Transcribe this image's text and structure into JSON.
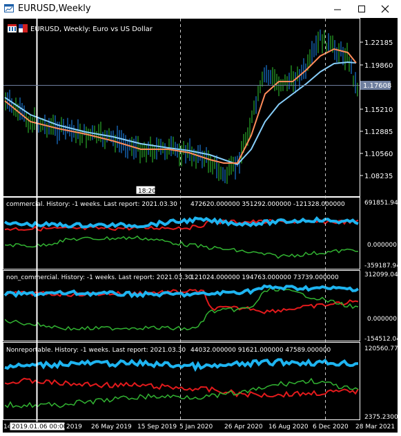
{
  "window": {
    "title": "EURUSD,Weekly"
  },
  "main": {
    "header": "EURUSD, Weekly:  Euro vs US Dollar",
    "price_ticks": [
      "1.22185",
      "1.19860",
      "1.15210",
      "1.12885",
      "1.10560",
      "1.08235"
    ],
    "current_price": "1.17608",
    "crosshair_time": "18:20"
  },
  "panels": [
    {
      "label": "commercial. History: -1 weeks. Last report: 2021.03.30",
      "values": "472620.000000  351292.000000  -121328.000000",
      "ticks": [
        "691851.940",
        "0.000000",
        "-359187.940"
      ]
    },
    {
      "label": "non_commercial. History: -1 weeks. Last report: 2021.03.30",
      "values": "121024.000000  194763.000000  73739.000000",
      "ticks": [
        "312099.045",
        "0.000000",
        "-154512.045"
      ]
    },
    {
      "label": "Nonreportable. History: -1 weeks. Last report: 2021.03.30",
      "values": "44032.000000  91621.000000  47589.000000",
      "ticks": [
        "120560.770",
        "2375.230000"
      ]
    }
  ],
  "time_axis": {
    "cursor_date": "2019.01.06 00:00",
    "left_fragment": "14",
    "labels": [
      "2019",
      "26 May 2019",
      "15 Sep 2019",
      "5 Jan 2020",
      "26 Apr 2020",
      "16 Aug 2020",
      "6 Dec 2020",
      "28 Mar 2021"
    ]
  },
  "colors": {
    "background": "#000000",
    "grid": "#ffffff",
    "candle_bull": "#1e90ff",
    "candle_bear": "#32cd32",
    "ma_fast": "#ff8c5a",
    "ma_slow": "#87cefa",
    "red": "#e31a1c",
    "blue": "#1eb4f0",
    "green": "#32b432",
    "text": "#ffffff"
  },
  "icons": {
    "app": "chart-window-icon",
    "minimize": "minimize-icon",
    "maximize": "maximize-icon",
    "close": "close-icon"
  }
}
